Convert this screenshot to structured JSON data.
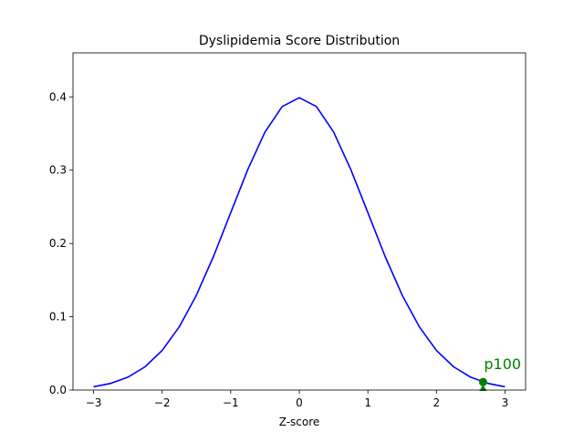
{
  "chart_data": {
    "type": "line",
    "title": "Dyslipidemia Score Distribution",
    "xlabel": "Z-score",
    "ylabel": "",
    "xlim": [
      -3.3,
      3.3
    ],
    "ylim": [
      0,
      0.46
    ],
    "grid": false,
    "xticks": [
      -3,
      -2,
      -1,
      0,
      1,
      2,
      3
    ],
    "xtick_labels": [
      "−3",
      "−2",
      "−1",
      "0",
      "1",
      "2",
      "3"
    ],
    "yticks": [
      0.0,
      0.1,
      0.2,
      0.3,
      0.4
    ],
    "ytick_labels": [
      "0.0",
      "0.1",
      "0.2",
      "0.3",
      "0.4"
    ],
    "series": [
      {
        "color": "#0000ff",
        "x": [
          -3.0,
          -2.75,
          -2.5,
          -2.25,
          -2.0,
          -1.75,
          -1.5,
          -1.25,
          -1.0,
          -0.75,
          -0.5,
          -0.25,
          0.0,
          0.25,
          0.5,
          0.75,
          1.0,
          1.25,
          1.5,
          1.75,
          2.0,
          2.25,
          2.5,
          2.75,
          3.0
        ],
        "y": [
          0.0044,
          0.0091,
          0.0175,
          0.0317,
          0.054,
          0.0863,
          0.1295,
          0.1826,
          0.242,
          0.3011,
          0.3521,
          0.3867,
          0.3989,
          0.3867,
          0.3521,
          0.3011,
          0.242,
          0.1826,
          0.1295,
          0.0863,
          0.054,
          0.0317,
          0.0175,
          0.0091,
          0.0044
        ]
      }
    ],
    "marker": {
      "label": "p100",
      "x": 2.68,
      "y": 0.011,
      "color": "#008000"
    }
  }
}
